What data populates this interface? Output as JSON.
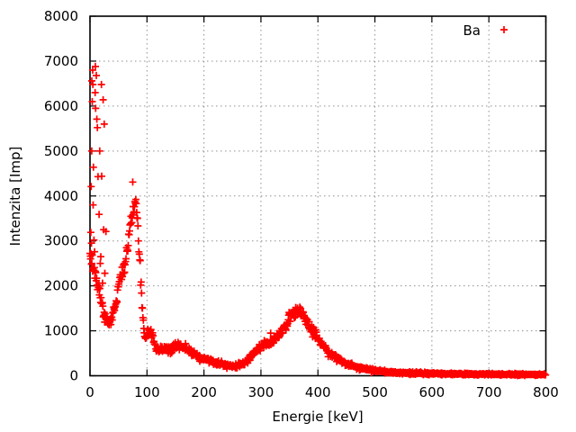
{
  "chart_data": {
    "type": "scatter",
    "title": "",
    "xlabel": "Energie [keV]",
    "ylabel": "Intenzita [Imp]",
    "xlim": [
      0,
      800
    ],
    "ylim": [
      0,
      8000
    ],
    "xticks": [
      0,
      100,
      200,
      300,
      400,
      500,
      600,
      700,
      800
    ],
    "yticks": [
      0,
      1000,
      2000,
      3000,
      4000,
      5000,
      6000,
      7000,
      8000
    ],
    "grid": "dotted",
    "legend": {
      "position": "top-right",
      "entries": [
        {
          "label": "Ba",
          "marker": "plus",
          "color": "#ff0000"
        }
      ]
    },
    "series": [
      {
        "name": "Ba",
        "marker": "plus",
        "marker_size_px": 8,
        "color": "#ff0000",
        "sample_step_keV": 0.78,
        "noise": {
          "seed": 12,
          "coeff": 1.7
        },
        "envelope_points": [
          [
            0,
            2600
          ],
          [
            4,
            2480
          ],
          [
            8,
            2300
          ],
          [
            12,
            2100
          ],
          [
            16,
            1900
          ],
          [
            20,
            1650
          ],
          [
            24,
            1420
          ],
          [
            28,
            1250
          ],
          [
            31,
            1160
          ],
          [
            34,
            1190
          ],
          [
            38,
            1300
          ],
          [
            42,
            1450
          ],
          [
            46,
            1700
          ],
          [
            50,
            1950
          ],
          [
            54,
            2150
          ],
          [
            58,
            2300
          ],
          [
            62,
            2550
          ],
          [
            66,
            2900
          ],
          [
            70,
            3300
          ],
          [
            74,
            3600
          ],
          [
            77,
            3780
          ],
          [
            80,
            3820
          ],
          [
            82,
            3650
          ],
          [
            85,
            3100
          ],
          [
            88,
            2400
          ],
          [
            90,
            1900
          ],
          [
            92,
            1450
          ],
          [
            94,
            1100
          ],
          [
            96,
            900
          ],
          [
            99,
            900
          ],
          [
            103,
            980
          ],
          [
            107,
            950
          ],
          [
            111,
            800
          ],
          [
            115,
            650
          ],
          [
            119,
            570
          ],
          [
            124,
            580
          ],
          [
            130,
            610
          ],
          [
            136,
            600
          ],
          [
            142,
            590
          ],
          [
            148,
            630
          ],
          [
            154,
            650
          ],
          [
            160,
            660
          ],
          [
            166,
            630
          ],
          [
            172,
            590
          ],
          [
            178,
            530
          ],
          [
            185,
            470
          ],
          [
            192,
            420
          ],
          [
            200,
            380
          ],
          [
            210,
            330
          ],
          [
            220,
            300
          ],
          [
            230,
            270
          ],
          [
            240,
            230
          ],
          [
            250,
            210
          ],
          [
            258,
            215
          ],
          [
            266,
            245
          ],
          [
            274,
            320
          ],
          [
            282,
            420
          ],
          [
            290,
            520
          ],
          [
            298,
            620
          ],
          [
            306,
            700
          ],
          [
            314,
            720
          ],
          [
            322,
            770
          ],
          [
            330,
            880
          ],
          [
            338,
            1030
          ],
          [
            346,
            1200
          ],
          [
            353,
            1340
          ],
          [
            359,
            1430
          ],
          [
            364,
            1460
          ],
          [
            369,
            1420
          ],
          [
            375,
            1330
          ],
          [
            382,
            1180
          ],
          [
            390,
            1020
          ],
          [
            398,
            860
          ],
          [
            406,
            720
          ],
          [
            414,
            600
          ],
          [
            422,
            500
          ],
          [
            430,
            420
          ],
          [
            438,
            360
          ],
          [
            446,
            300
          ],
          [
            454,
            250
          ],
          [
            462,
            215
          ],
          [
            470,
            185
          ],
          [
            480,
            155
          ],
          [
            490,
            132
          ],
          [
            500,
            112
          ],
          [
            512,
            95
          ],
          [
            524,
            82
          ],
          [
            536,
            73
          ],
          [
            550,
            64
          ],
          [
            565,
            57
          ],
          [
            580,
            52
          ],
          [
            600,
            46
          ],
          [
            620,
            42
          ],
          [
            645,
            39
          ],
          [
            670,
            36
          ],
          [
            700,
            34
          ],
          [
            730,
            32
          ],
          [
            760,
            31
          ],
          [
            800,
            29
          ]
        ],
        "outlier_points": [
          [
            1,
            2600
          ],
          [
            1.5,
            3190
          ],
          [
            2,
            4210
          ],
          [
            2.5,
            2950
          ],
          [
            3,
            5000
          ],
          [
            3.2,
            6560
          ],
          [
            4,
            6100
          ],
          [
            4.7,
            6800
          ],
          [
            5,
            6480
          ],
          [
            5.5,
            3800
          ],
          [
            6,
            4640
          ],
          [
            7,
            3020
          ],
          [
            8,
            2760
          ],
          [
            9,
            6300
          ],
          [
            9.5,
            6880
          ],
          [
            10,
            5950
          ],
          [
            11,
            6680
          ],
          [
            12,
            5710
          ],
          [
            13,
            5520
          ],
          [
            14,
            4430
          ],
          [
            16,
            3590
          ],
          [
            17,
            5000
          ],
          [
            18,
            2500
          ],
          [
            19,
            2650
          ],
          [
            20,
            6480
          ],
          [
            20.5,
            4440
          ],
          [
            22,
            2060
          ],
          [
            23,
            6140
          ],
          [
            24,
            3250
          ],
          [
            25,
            5600
          ],
          [
            26,
            2280
          ],
          [
            28,
            3210
          ],
          [
            75,
            4310
          ],
          [
            317,
            950
          ]
        ]
      }
    ]
  },
  "colors": {
    "background": "#ffffff",
    "axis": "#000000",
    "grid": "#8f8f8f",
    "series": "#ff0000",
    "text": "#000000"
  }
}
